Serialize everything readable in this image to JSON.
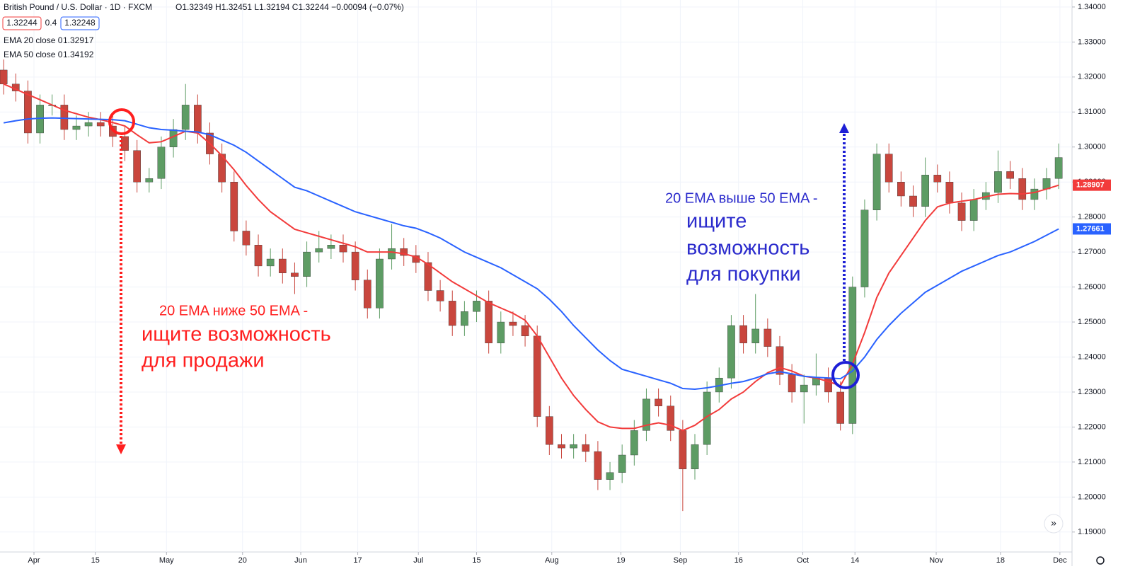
{
  "header": {
    "symbol": "British Pound / U.S. Dollar · 1D · FXCM",
    "ohlc_text": "O1.32349 H1.32451 L1.32194 C1.32244 −0.00094 (−0.07%)",
    "bid": "1.32244",
    "spread": "0.4",
    "ask": "1.32248",
    "ema20_name": "EMA 20 close 0",
    "ema20_value": "1.32917",
    "ema50_name": "EMA 50 close 0",
    "ema50_value": "1.34192"
  },
  "chart_data": {
    "type": "candlestick",
    "up_color": "#5d9c64",
    "down_color": "#c9463d",
    "ylim": [
      1.1843,
      1.342
    ],
    "yticks": [
      {
        "value": 1.34,
        "label": "1.34000"
      },
      {
        "value": 1.33,
        "label": "1.33000"
      },
      {
        "value": 1.32,
        "label": "1.32000"
      },
      {
        "value": 1.31,
        "label": "1.31000"
      },
      {
        "value": 1.3,
        "label": "1.30000"
      },
      {
        "value": 1.29,
        "label": "1.29000"
      },
      {
        "value": 1.28,
        "label": "1.28000"
      },
      {
        "value": 1.27,
        "label": "1.27000"
      },
      {
        "value": 1.26,
        "label": "1.26000"
      },
      {
        "value": 1.25,
        "label": "1.25000"
      },
      {
        "value": 1.24,
        "label": "1.24000"
      },
      {
        "value": 1.23,
        "label": "1.23000"
      },
      {
        "value": 1.22,
        "label": "1.22000"
      },
      {
        "value": 1.21,
        "label": "1.21000"
      },
      {
        "value": 1.2,
        "label": "1.20000"
      },
      {
        "value": 1.19,
        "label": "1.19000"
      }
    ],
    "xlim": [
      -0.3,
      88.1
    ],
    "xticks": [
      {
        "value": 2.5,
        "label": "Apr"
      },
      {
        "value": 7.56,
        "label": "15"
      },
      {
        "value": 13.43,
        "label": "May"
      },
      {
        "value": 19.7,
        "label": "20"
      },
      {
        "value": 24.5,
        "label": "Jun"
      },
      {
        "value": 29.2,
        "label": "17"
      },
      {
        "value": 34.2,
        "label": "Jul"
      },
      {
        "value": 39.0,
        "label": "15"
      },
      {
        "value": 45.2,
        "label": "Aug"
      },
      {
        "value": 50.9,
        "label": "19"
      },
      {
        "value": 55.8,
        "label": "Sep"
      },
      {
        "value": 60.6,
        "label": "16"
      },
      {
        "value": 65.9,
        "label": "Oct"
      },
      {
        "value": 70.2,
        "label": "14"
      },
      {
        "value": 76.9,
        "label": "Nov"
      },
      {
        "value": 82.2,
        "label": "18"
      },
      {
        "value": 87.1,
        "label": "Dec"
      }
    ],
    "ohlc": [
      [
        1.322,
        1.325,
        1.315,
        1.318
      ],
      [
        1.318,
        1.321,
        1.313,
        1.316
      ],
      [
        1.316,
        1.319,
        1.301,
        1.304
      ],
      [
        1.304,
        1.315,
        1.301,
        1.312
      ],
      [
        1.312,
        1.315,
        1.309,
        1.312
      ],
      [
        1.312,
        1.315,
        1.302,
        1.305
      ],
      [
        1.305,
        1.309,
        1.302,
        1.306
      ],
      [
        1.306,
        1.31,
        1.303,
        1.307
      ],
      [
        1.307,
        1.31,
        1.303,
        1.306
      ],
      [
        1.306,
        1.309,
        1.3,
        1.303
      ],
      [
        1.303,
        1.306,
        1.296,
        1.299
      ],
      [
        1.299,
        1.302,
        1.287,
        1.29
      ],
      [
        1.29,
        1.294,
        1.287,
        1.291
      ],
      [
        1.291,
        1.303,
        1.288,
        1.3
      ],
      [
        1.3,
        1.308,
        1.297,
        1.305
      ],
      [
        1.305,
        1.318,
        1.302,
        1.312
      ],
      [
        1.312,
        1.315,
        1.301,
        1.304
      ],
      [
        1.304,
        1.307,
        1.295,
        1.298
      ],
      [
        1.298,
        1.301,
        1.287,
        1.29
      ],
      [
        1.29,
        1.293,
        1.273,
        1.276
      ],
      [
        1.276,
        1.279,
        1.269,
        1.272
      ],
      [
        1.272,
        1.275,
        1.263,
        1.266
      ],
      [
        1.266,
        1.271,
        1.263,
        1.268
      ],
      [
        1.268,
        1.271,
        1.261,
        1.264
      ],
      [
        1.264,
        1.267,
        1.258,
        1.263
      ],
      [
        1.263,
        1.273,
        1.26,
        1.27
      ],
      [
        1.27,
        1.276,
        1.267,
        1.271
      ],
      [
        1.271,
        1.275,
        1.268,
        1.272
      ],
      [
        1.272,
        1.275,
        1.267,
        1.27
      ],
      [
        1.27,
        1.273,
        1.259,
        1.262
      ],
      [
        1.262,
        1.265,
        1.251,
        1.254
      ],
      [
        1.254,
        1.271,
        1.251,
        1.268
      ],
      [
        1.268,
        1.278,
        1.265,
        1.271
      ],
      [
        1.271,
        1.274,
        1.266,
        1.269
      ],
      [
        1.269,
        1.272,
        1.264,
        1.267
      ],
      [
        1.267,
        1.27,
        1.256,
        1.259
      ],
      [
        1.259,
        1.262,
        1.253,
        1.256
      ],
      [
        1.256,
        1.259,
        1.246,
        1.249
      ],
      [
        1.249,
        1.256,
        1.246,
        1.253
      ],
      [
        1.253,
        1.259,
        1.25,
        1.256
      ],
      [
        1.256,
        1.259,
        1.241,
        1.244
      ],
      [
        1.244,
        1.253,
        1.241,
        1.25
      ],
      [
        1.25,
        1.253,
        1.246,
        1.249
      ],
      [
        1.249,
        1.252,
        1.243,
        1.246
      ],
      [
        1.246,
        1.249,
        1.22,
        1.223
      ],
      [
        1.223,
        1.226,
        1.212,
        1.215
      ],
      [
        1.215,
        1.218,
        1.211,
        1.214
      ],
      [
        1.214,
        1.218,
        1.211,
        1.215
      ],
      [
        1.215,
        1.218,
        1.21,
        1.213
      ],
      [
        1.213,
        1.216,
        1.202,
        1.205
      ],
      [
        1.205,
        1.21,
        1.202,
        1.207
      ],
      [
        1.207,
        1.215,
        1.204,
        1.212
      ],
      [
        1.212,
        1.222,
        1.209,
        1.219
      ],
      [
        1.219,
        1.231,
        1.216,
        1.228
      ],
      [
        1.228,
        1.231,
        1.223,
        1.226
      ],
      [
        1.226,
        1.229,
        1.216,
        1.219
      ],
      [
        1.219,
        1.222,
        1.196,
        1.208
      ],
      [
        1.208,
        1.218,
        1.205,
        1.215
      ],
      [
        1.215,
        1.233,
        1.212,
        1.23
      ],
      [
        1.23,
        1.237,
        1.227,
        1.234
      ],
      [
        1.234,
        1.252,
        1.231,
        1.249
      ],
      [
        1.249,
        1.252,
        1.241,
        1.244
      ],
      [
        1.244,
        1.258,
        1.241,
        1.248
      ],
      [
        1.248,
        1.251,
        1.24,
        1.243
      ],
      [
        1.243,
        1.246,
        1.232,
        1.235
      ],
      [
        1.235,
        1.238,
        1.227,
        1.23
      ],
      [
        1.23,
        1.235,
        1.221,
        1.232
      ],
      [
        1.232,
        1.241,
        1.229,
        1.234
      ],
      [
        1.234,
        1.237,
        1.227,
        1.23
      ],
      [
        1.23,
        1.233,
        1.219,
        1.221
      ],
      [
        1.221,
        1.263,
        1.218,
        1.26
      ],
      [
        1.26,
        1.285,
        1.257,
        1.282
      ],
      [
        1.282,
        1.301,
        1.279,
        1.298
      ],
      [
        1.298,
        1.301,
        1.287,
        1.29
      ],
      [
        1.29,
        1.293,
        1.283,
        1.286
      ],
      [
        1.286,
        1.289,
        1.28,
        1.283
      ],
      [
        1.283,
        1.297,
        1.28,
        1.292
      ],
      [
        1.292,
        1.295,
        1.287,
        1.29
      ],
      [
        1.29,
        1.293,
        1.281,
        1.284
      ],
      [
        1.284,
        1.287,
        1.276,
        1.279
      ],
      [
        1.279,
        1.288,
        1.276,
        1.285
      ],
      [
        1.285,
        1.29,
        1.282,
        1.287
      ],
      [
        1.287,
        1.299,
        1.284,
        1.293
      ],
      [
        1.293,
        1.296,
        1.288,
        1.291
      ],
      [
        1.291,
        1.294,
        1.282,
        1.285
      ],
      [
        1.285,
        1.291,
        1.282,
        1.288
      ],
      [
        1.288,
        1.294,
        1.285,
        1.291
      ],
      [
        1.291,
        1.301,
        1.288,
        1.297
      ]
    ],
    "series": [
      {
        "name": "EMA 20",
        "color": "#f23b3b",
        "price_label": "1.28907",
        "values": [
          1.318,
          1.3165,
          1.315,
          1.3135,
          1.312,
          1.3105,
          1.3095,
          1.3085,
          1.3078,
          1.307,
          1.306,
          1.3035,
          1.3012,
          1.3015,
          1.303,
          1.3045,
          1.304,
          1.301,
          1.2975,
          1.2935,
          1.289,
          1.285,
          1.2815,
          1.279,
          1.2765,
          1.2755,
          1.2745,
          1.2735,
          1.2725,
          1.2715,
          1.27,
          1.27,
          1.27,
          1.2695,
          1.2686,
          1.2665,
          1.264,
          1.2615,
          1.2595,
          1.2575,
          1.2555,
          1.254,
          1.2525,
          1.2505,
          1.246,
          1.24,
          1.234,
          1.229,
          1.225,
          1.2215,
          1.22,
          1.2196,
          1.2196,
          1.2205,
          1.2212,
          1.2205,
          1.219,
          1.2205,
          1.223,
          1.225,
          1.228,
          1.23,
          1.233,
          1.2355,
          1.237,
          1.236,
          1.2345,
          1.234,
          1.233,
          1.2318,
          1.238,
          1.247,
          1.257,
          1.264,
          1.269,
          1.274,
          1.279,
          1.2829,
          1.284,
          1.2845,
          1.285,
          1.2858,
          1.2865,
          1.2867,
          1.2866,
          1.287,
          1.288,
          1.2891
        ]
      },
      {
        "name": "EMA 50",
        "color": "#2962ff",
        "price_label": "1.27661",
        "values": [
          1.3069,
          1.3075,
          1.308,
          1.3082,
          1.3083,
          1.3082,
          1.3081,
          1.308,
          1.3079,
          1.3078,
          1.3075,
          1.3065,
          1.3055,
          1.305,
          1.3048,
          1.3045,
          1.3043,
          1.3035,
          1.302,
          1.3005,
          1.2985,
          1.296,
          1.2935,
          1.291,
          1.2885,
          1.2875,
          1.286,
          1.2845,
          1.283,
          1.2815,
          1.2805,
          1.2795,
          1.2785,
          1.2775,
          1.2768,
          1.2755,
          1.274,
          1.272,
          1.27,
          1.2685,
          1.267,
          1.2655,
          1.2635,
          1.2615,
          1.2595,
          1.2565,
          1.253,
          1.249,
          1.2455,
          1.242,
          1.239,
          1.2365,
          1.2355,
          1.2345,
          1.2335,
          1.2325,
          1.231,
          1.2308,
          1.2312,
          1.2318,
          1.2325,
          1.233,
          1.234,
          1.2352,
          1.2358,
          1.2352,
          1.2345,
          1.2342,
          1.234,
          1.2338,
          1.236,
          1.24,
          1.245,
          1.249,
          1.2525,
          1.2555,
          1.2585,
          1.2605,
          1.2625,
          1.2645,
          1.266,
          1.2675,
          1.269,
          1.27,
          1.2715,
          1.273,
          1.2748,
          1.2766
        ]
      }
    ],
    "annotations": {
      "sell_line1": "20 EMA ниже 50 EMA -",
      "sell_line2": "ищите возможность",
      "sell_line3": "для продажи",
      "buy_line1": "20 EMA выше 50 EMA -",
      "buy_line2": "ищите",
      "buy_line3": "возможность",
      "buy_line4": "для покупки"
    }
  }
}
